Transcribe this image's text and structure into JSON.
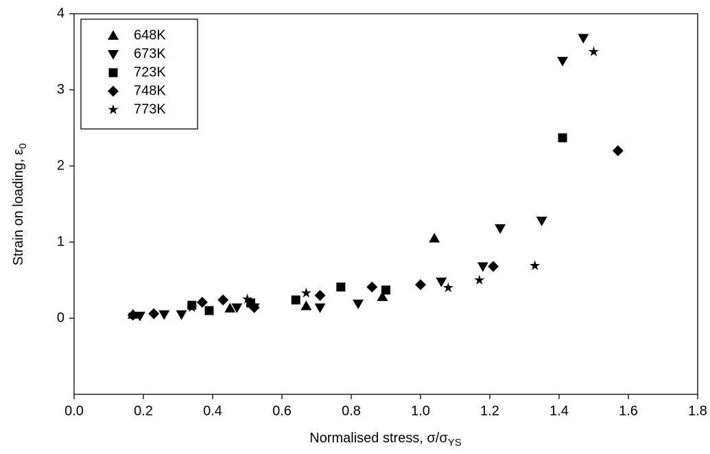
{
  "chart_data": {
    "type": "scatter",
    "xlabel": "Normalised stress, σ/σ",
    "xlabel_sub": "YS",
    "ylabel": "Strain on loading, ε",
    "ylabel_sub": "0",
    "xlim": [
      0,
      1.8
    ],
    "xticks": [
      {
        "value": 0,
        "label": "0.0"
      },
      0.2,
      0.4,
      0.6,
      0.8,
      {
        "value": 1,
        "label": "1.0"
      },
      1.2,
      1.4,
      1.6,
      1.8
    ],
    "ylim": [
      -1,
      4
    ],
    "yticks": [
      0,
      1,
      2,
      3,
      4
    ],
    "legend": "upper-left",
    "series": [
      {
        "name": "648K",
        "color": "#000000",
        "marker": "triangle-up",
        "x": [
          0.17,
          0.45,
          0.67,
          0.89,
          1.04
        ],
        "values": [
          0.05,
          0.13,
          0.16,
          0.28,
          1.05
        ]
      },
      {
        "name": "673K",
        "color": "#000000",
        "marker": "triangle-down",
        "x": [
          0.19,
          0.26,
          0.31,
          0.47,
          0.52,
          0.71,
          0.82,
          1.06,
          1.18,
          1.23,
          1.35,
          1.41,
          1.47
        ],
        "values": [
          0.03,
          0.05,
          0.05,
          0.14,
          0.14,
          0.14,
          0.19,
          0.48,
          0.68,
          1.18,
          1.28,
          3.38,
          3.68
        ]
      },
      {
        "name": "723K",
        "color": "#000000",
        "marker": "square",
        "x": [
          0.34,
          0.39,
          0.51,
          0.64,
          0.77,
          0.9,
          1.41
        ],
        "values": [
          0.17,
          0.1,
          0.2,
          0.24,
          0.41,
          0.37,
          2.37
        ]
      },
      {
        "name": "748K",
        "color": "#000000",
        "marker": "diamond",
        "x": [
          0.17,
          0.23,
          0.37,
          0.43,
          0.52,
          0.71,
          0.86,
          1.0,
          1.21,
          1.57
        ],
        "values": [
          0.04,
          0.06,
          0.21,
          0.24,
          0.14,
          0.3,
          0.41,
          0.44,
          0.68,
          2.2
        ]
      },
      {
        "name": "773K",
        "color": "#000000",
        "marker": "star",
        "x": [
          0.17,
          0.34,
          0.5,
          0.67,
          1.08,
          1.17,
          1.33,
          1.5
        ],
        "values": [
          0.05,
          0.14,
          0.25,
          0.33,
          0.4,
          0.5,
          0.69,
          3.5
        ]
      }
    ]
  }
}
